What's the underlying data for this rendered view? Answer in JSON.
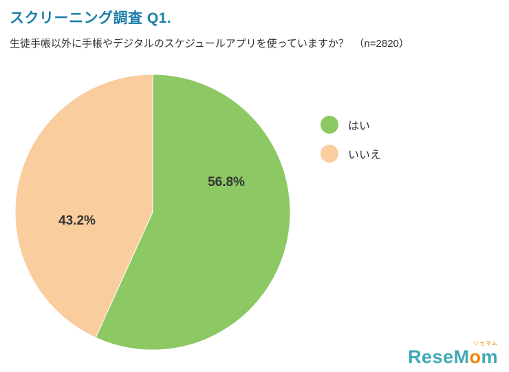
{
  "header": {
    "title": "スクリーニング調査 Q1.",
    "subtitle": "生徒手帳以外に手帳やデジタルのスケジュールアプリを使っていますか？　（n=2820）",
    "title_color": "#1b7ea8"
  },
  "chart_data": {
    "type": "pie",
    "title": "スクリーニング調査 Q1.",
    "question": "生徒手帳以外に手帳やデジタルのスケジュールアプリを使っていますか？",
    "n": 2820,
    "labels": [
      "はい",
      "いいえ"
    ],
    "values": [
      56.8,
      43.2
    ],
    "value_labels": [
      "56.8%",
      "43.2%"
    ],
    "colors": [
      "#8cc863",
      "#f9cd9e"
    ],
    "start_angle_deg": 0,
    "direction": "clockwise",
    "legend_position": "right",
    "label_positions": [
      [
        0.535,
        -0.215
      ],
      [
        -0.55,
        0.065
      ]
    ]
  },
  "legend": {
    "items": [
      {
        "label": "はい",
        "color": "#8cc863"
      },
      {
        "label": "いいえ",
        "color": "#f9cd9e"
      }
    ]
  },
  "logo": {
    "sub": "リセマム",
    "main_part1": "ReseM",
    "accent_dot": "o",
    "main_part2": "m"
  }
}
